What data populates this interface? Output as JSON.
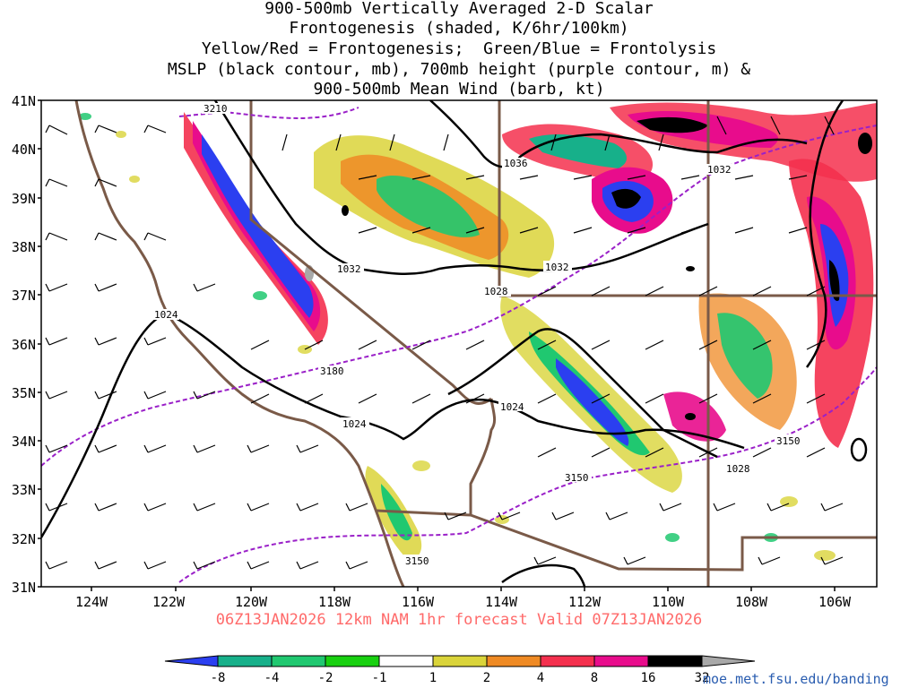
{
  "title": {
    "lines": [
      "900-500mb Vertically Averaged 2-D Scalar",
      "Frontogenesis (shaded, K/6hr/100km)",
      "Yellow/Red = Frontogenesis;  Green/Blue = Frontolysis",
      "MSLP (black contour, mb), 700mb height (purple contour, m) &",
      "900-500mb Mean Wind (barb, kt)"
    ]
  },
  "footer": "06Z13JAN2026 12km NAM 1hr forecast Valid 07Z13JAN2026",
  "credit": "moe.met.fsu.edu/banding",
  "axes": {
    "lat_labels": [
      "41N",
      "40N",
      "39N",
      "38N",
      "37N",
      "36N",
      "35N",
      "34N",
      "33N",
      "32N",
      "31N"
    ],
    "lon_labels": [
      "124W",
      "122W",
      "120W",
      "118W",
      "116W",
      "114W",
      "112W",
      "110W",
      "108W",
      "106W"
    ]
  },
  "contour_labels": {
    "mslp": [
      "1024",
      "1032",
      "1028",
      "1036",
      "1032",
      "1032",
      "1024",
      "1024",
      "1028"
    ],
    "height_700": [
      "3210",
      "3180",
      "3150",
      "3150",
      "3150"
    ]
  },
  "colorbar": {
    "labels": [
      "-8",
      "-4",
      "-2",
      "-1",
      "1",
      "2",
      "4",
      "8",
      "16",
      "32"
    ],
    "colors": [
      "#2b3ff0",
      "#17b08a",
      "#20c870",
      "#18d010",
      "#ffffff",
      "#dad43a",
      "#ef8a24",
      "#f4304e",
      "#e80c8c",
      "#000000",
      "#a8a8a8"
    ]
  },
  "colors": {
    "mslp": "#000000",
    "height_700": "#9a20c8",
    "borders": "#7a5a48"
  }
}
